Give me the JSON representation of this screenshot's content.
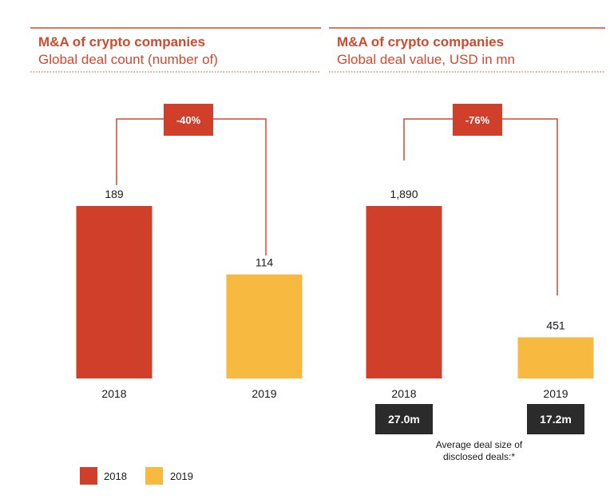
{
  "chart_data": [
    {
      "type": "bar",
      "title": "M&A of crypto companies",
      "subtitle": "Global deal count (number of)",
      "categories": [
        "2018",
        "2019"
      ],
      "values": [
        189,
        114
      ],
      "value_labels": [
        "189",
        "114"
      ],
      "change_label": "-40%",
      "ylim": [
        0,
        189
      ]
    },
    {
      "type": "bar",
      "title": "M&A of crypto companies",
      "subtitle": "Global deal value, USD in mn",
      "categories": [
        "2018",
        "2019"
      ],
      "values": [
        1890,
        451
      ],
      "value_labels": [
        "1,890",
        "451"
      ],
      "change_label": "-76%",
      "avg_deal_sizes": [
        "27.0m",
        "17.2m"
      ],
      "avg_note": [
        "Average deal size of",
        "disclosed deals:*"
      ],
      "ylim": [
        0,
        1890
      ]
    }
  ],
  "legend": [
    {
      "label": "2018",
      "color": "#d03f2a"
    },
    {
      "label": "2019",
      "color": "#f7b940"
    }
  ],
  "colors": {
    "accent": "#d04a2f",
    "bar_2018": "#d03f2a",
    "bar_2019": "#f7b940",
    "dark_box": "#2b2b2b"
  }
}
